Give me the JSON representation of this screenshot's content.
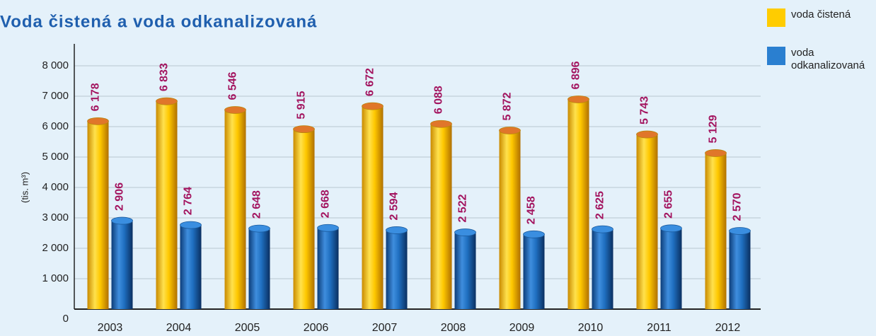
{
  "chart_data": {
    "type": "bar",
    "title": "Voda čistená a voda odkanalizovaná",
    "ylabel": "(tis. m³)",
    "categories": [
      "2003",
      "2004",
      "2005",
      "2006",
      "2007",
      "2008",
      "2009",
      "2010",
      "2011",
      "2012"
    ],
    "series": [
      {
        "name": "voda čistená",
        "color": "#ffcc00",
        "values": [
          6178,
          6833,
          6546,
          5915,
          6672,
          6088,
          5872,
          6896,
          5743,
          5129
        ],
        "value_labels": [
          "6 178",
          "6 833",
          "6 546",
          "5 915",
          "6 672",
          "6 088",
          "5 872",
          "6 896",
          "5 743",
          "5 129"
        ]
      },
      {
        "name": "voda odkanalizovaná",
        "color": "#1f6fc0",
        "values": [
          2906,
          2764,
          2648,
          2668,
          2594,
          2522,
          2458,
          2625,
          2655,
          2570
        ],
        "value_labels": [
          "2 906",
          "2 764",
          "2 648",
          "2 668",
          "2 594",
          "2 522",
          "2 458",
          "2 625",
          "2 655",
          "2 570"
        ]
      }
    ],
    "ylim": [
      0,
      8000
    ],
    "yticks": [
      0,
      {
        "value": 1000,
        "label": "1 000"
      },
      {
        "value": 2000,
        "label": "2 000"
      },
      {
        "value": 3000,
        "label": "3 000"
      },
      {
        "value": 4000,
        "label": "4 000"
      },
      {
        "value": 5000,
        "label": "5 000"
      },
      {
        "value": 6000,
        "label": "6 000"
      },
      {
        "value": 7000,
        "label": "7 000"
      },
      {
        "value": 8000,
        "label": "8 000"
      }
    ],
    "grid": true
  }
}
